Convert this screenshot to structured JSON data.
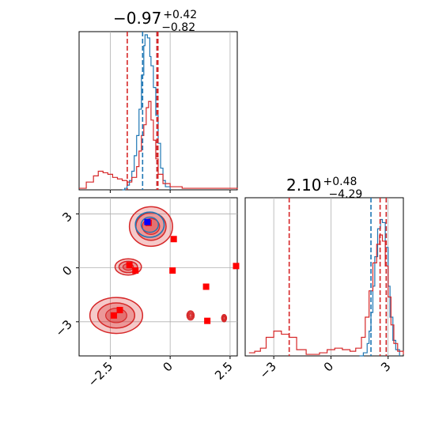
{
  "chart_data": [
    {
      "type": "histogram",
      "panel": "marginal-x",
      "title": {
        "value": "−0.97",
        "upper": "+0.42",
        "lower": "−0.82"
      },
      "xlim": [
        -3.8,
        2.8
      ],
      "x_ticks": [
        -2.5,
        0.0,
        2.5
      ],
      "vlines": {
        "blue": [
          -1.15,
          -0.55
        ],
        "red": [
          -1.79,
          -0.55,
          -0.51
        ]
      },
      "series": [
        {
          "color": "#1f77b4",
          "points": [
            [
              -2.0,
              0
            ],
            [
              -1.9,
              0.01
            ],
            [
              -1.8,
              0.03
            ],
            [
              -1.7,
              0.06
            ],
            [
              -1.6,
              0.12
            ],
            [
              -1.5,
              0.22
            ],
            [
              -1.4,
              0.35
            ],
            [
              -1.3,
              0.52
            ],
            [
              -1.2,
              0.74
            ],
            [
              -1.1,
              0.93
            ],
            [
              -1.05,
              1.0
            ],
            [
              -0.95,
              0.98
            ],
            [
              -0.85,
              0.86
            ],
            [
              -0.8,
              0.8
            ],
            [
              -0.7,
              0.66
            ],
            [
              -0.6,
              0.48
            ],
            [
              -0.5,
              0.3
            ],
            [
              -0.4,
              0.14
            ],
            [
              -0.3,
              0.06
            ],
            [
              -0.2,
              0.02
            ],
            [
              0,
              0
            ]
          ]
        },
        {
          "color": "#d62728",
          "points": [
            [
              -3.8,
              0.01
            ],
            [
              -3.5,
              0.05
            ],
            [
              -3.2,
              0.09
            ],
            [
              -3.0,
              0.12
            ],
            [
              -2.8,
              0.11
            ],
            [
              -2.6,
              0.1
            ],
            [
              -2.4,
              0.08
            ],
            [
              -2.2,
              0.07
            ],
            [
              -2.0,
              0.06
            ],
            [
              -1.8,
              0.05
            ],
            [
              -1.6,
              0.08
            ],
            [
              -1.4,
              0.15
            ],
            [
              -1.3,
              0.25
            ],
            [
              -1.2,
              0.35
            ],
            [
              -1.1,
              0.42
            ],
            [
              -1.0,
              0.53
            ],
            [
              -0.9,
              0.57
            ],
            [
              -0.8,
              0.45
            ],
            [
              -0.7,
              0.32
            ],
            [
              -0.6,
              0.2
            ],
            [
              -0.5,
              0.1
            ],
            [
              -0.3,
              0.04
            ],
            [
              0.0,
              0.02
            ],
            [
              0.5,
              0.01
            ],
            [
              1.5,
              0.01
            ],
            [
              2.8,
              0.005
            ]
          ]
        }
      ]
    },
    {
      "type": "histogram",
      "panel": "marginal-y",
      "title": {
        "value": "2.10",
        "upper": "+0.48",
        "lower": "−4.29"
      },
      "xlim": [
        -4.5,
        3.8
      ],
      "x_ticks": [
        -3,
        0,
        3
      ],
      "vlines": {
        "blue": [
          2.1,
          2.9
        ],
        "red": [
          -2.19,
          2.58,
          2.9
        ]
      },
      "series": [
        {
          "color": "#1f77b4",
          "points": [
            [
              1.5,
              0
            ],
            [
              1.7,
              0.02
            ],
            [
              1.9,
              0.08
            ],
            [
              2.0,
              0.16
            ],
            [
              2.1,
              0.28
            ],
            [
              2.2,
              0.45
            ],
            [
              2.3,
              0.64
            ],
            [
              2.45,
              0.82
            ],
            [
              2.6,
              0.88
            ],
            [
              2.7,
              0.86
            ],
            [
              2.85,
              0.7
            ],
            [
              3.0,
              0.45
            ],
            [
              3.1,
              0.25
            ],
            [
              3.25,
              0.1
            ],
            [
              3.4,
              0.04
            ],
            [
              3.6,
              0
            ]
          ]
        },
        {
          "color": "#d62728",
          "points": [
            [
              -4.3,
              0.02
            ],
            [
              -4.0,
              0.03
            ],
            [
              -3.7,
              0.05
            ],
            [
              -3.4,
              0.12
            ],
            [
              -3.0,
              0.16
            ],
            [
              -2.6,
              0.14
            ],
            [
              -2.2,
              0.12
            ],
            [
              -1.8,
              0.04
            ],
            [
              -1.3,
              0.01
            ],
            [
              -0.6,
              0.02
            ],
            [
              -0.2,
              0.04
            ],
            [
              0.2,
              0.05
            ],
            [
              0.6,
              0.04
            ],
            [
              1.0,
              0.03
            ],
            [
              1.3,
              0.05
            ],
            [
              1.6,
              0.12
            ],
            [
              1.8,
              0.25
            ],
            [
              2.0,
              0.42
            ],
            [
              2.2,
              0.6
            ],
            [
              2.4,
              0.72
            ],
            [
              2.55,
              0.78
            ],
            [
              2.7,
              0.74
            ],
            [
              2.85,
              0.58
            ],
            [
              3.0,
              0.38
            ],
            [
              3.15,
              0.2
            ],
            [
              3.3,
              0.08
            ],
            [
              3.5,
              0.03
            ],
            [
              3.8,
              0.01
            ]
          ]
        }
      ]
    },
    {
      "type": "contour",
      "panel": "joint",
      "xlim": [
        -3.8,
        2.8
      ],
      "ylim": [
        -4.9,
        3.9
      ],
      "x_ticks": [
        -2.5,
        0.0,
        2.5
      ],
      "y_ticks": [
        3,
        0,
        -3
      ],
      "red_regions": [
        {
          "x": -0.8,
          "y": 2.3,
          "rx": 0.9,
          "ry": 1.1
        },
        {
          "x": -1.75,
          "y": 0.05,
          "rx": 0.55,
          "ry": 0.45
        },
        {
          "x": -2.25,
          "y": -2.65,
          "rx": 1.1,
          "ry": 1.0
        },
        {
          "x": 0.85,
          "y": -2.65,
          "rx": 0.15,
          "ry": 0.25
        },
        {
          "x": 2.25,
          "y": -2.8,
          "rx": 0.1,
          "ry": 0.2
        }
      ],
      "blue_regions": [
        {
          "x": -0.85,
          "y": 2.4,
          "rx": 0.6,
          "ry": 0.7
        }
      ],
      "red_markers": [
        [
          -0.9,
          2.5
        ],
        [
          0.15,
          1.6
        ],
        [
          -1.7,
          0.15
        ],
        [
          -1.45,
          -0.15
        ],
        [
          0.1,
          -0.15
        ],
        [
          1.5,
          -1.05
        ],
        [
          -2.1,
          -2.35
        ],
        [
          -2.35,
          -2.65
        ],
        [
          1.55,
          -2.95
        ],
        [
          2.75,
          0.1
        ]
      ],
      "blue_marker": [
        -0.95,
        2.55
      ]
    }
  ]
}
